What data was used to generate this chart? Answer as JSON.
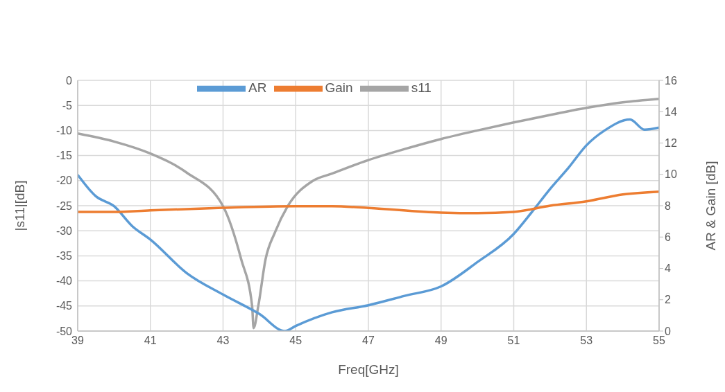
{
  "chart_data": {
    "type": "line",
    "xlabel": "Freq[GHz]",
    "ylabel": "|s11|[dB]",
    "y2label": "AR & Gain [dB]",
    "xlim": [
      39,
      55
    ],
    "xticks": [
      39,
      41,
      43,
      45,
      47,
      49,
      51,
      53,
      55
    ],
    "ylim": [
      -50,
      0
    ],
    "yticks": [
      -50,
      -45,
      -40,
      -35,
      -30,
      -25,
      -20,
      -15,
      -10,
      -5,
      0
    ],
    "y2lim": [
      0,
      16
    ],
    "y2ticks": [
      0,
      2,
      4,
      6,
      8,
      10,
      12,
      14,
      16
    ],
    "grid": true,
    "legend": "top",
    "marker": "none",
    "line_style": "solid",
    "series": [
      {
        "name": "s11",
        "color": "#a5a5a5",
        "x": [
          39,
          40,
          41,
          42,
          43,
          43.5,
          43.8,
          43.84,
          43.97,
          44.17,
          44.43,
          44.78,
          45.46,
          46,
          47,
          48,
          49,
          50,
          51,
          52,
          53,
          54,
          55
        ],
        "values": [
          -10.6,
          -12.2,
          -14.6,
          -18.4,
          -25.1,
          -35.7,
          -45,
          -49.4,
          -45,
          -35.7,
          -30.3,
          -25.1,
          -20.1,
          -18.6,
          -15.9,
          -13.7,
          -11.7,
          -10,
          -8.4,
          -6.9,
          -5.5,
          -4.4,
          -3.7
        ]
      },
      {
        "name": "AR",
        "color": "#5b9bd5",
        "axis": "y2",
        "x": [
          39,
          39.5,
          40,
          40.5,
          41,
          42,
          43,
          44,
          44.7,
          45,
          46,
          47,
          48,
          49,
          50,
          51,
          51.5,
          52,
          52.5,
          53,
          53.5,
          54.2,
          54.6,
          55
        ],
        "values": [
          9.97,
          8.6,
          7.97,
          6.7,
          5.84,
          3.7,
          2.33,
          1.09,
          0,
          0.33,
          1.2,
          1.65,
          2.25,
          2.85,
          4.4,
          6.2,
          7.6,
          9.07,
          10.4,
          11.85,
          12.8,
          13.5,
          12.85,
          12.98
        ]
      },
      {
        "name": "Gain",
        "color": "#ed7d31",
        "axis": "y2",
        "x": [
          39,
          40,
          41,
          43,
          45,
          46,
          47,
          49,
          50,
          51,
          52,
          53,
          54,
          55
        ],
        "values": [
          7.6,
          7.6,
          7.7,
          7.87,
          7.97,
          7.97,
          7.86,
          7.56,
          7.52,
          7.6,
          8.0,
          8.28,
          8.72,
          8.9
        ]
      }
    ]
  }
}
